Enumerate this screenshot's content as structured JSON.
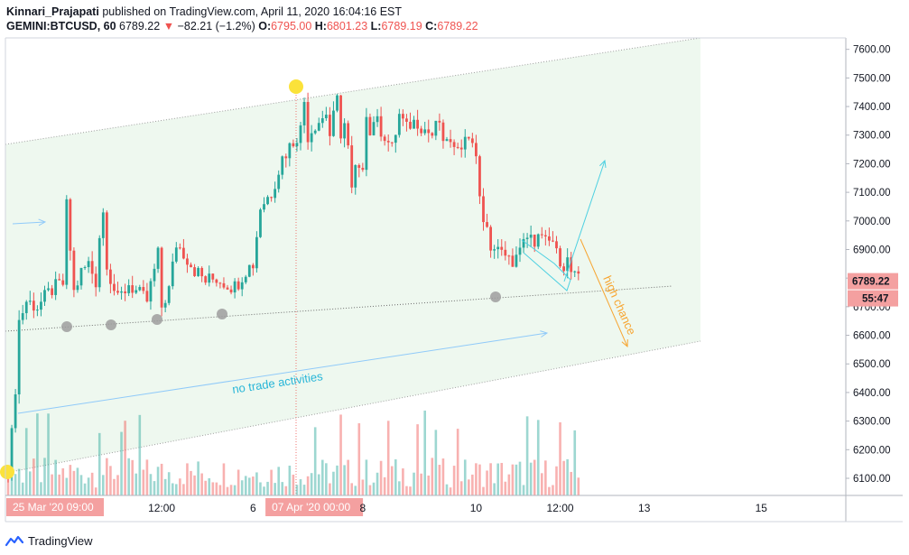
{
  "header": {
    "author": "Kinnari_Prajapati",
    "published": "published on TradingView.com, April 11, 2020 16:04:16 EST",
    "symbol": "GEMINI:BTCUSD, 60",
    "last": "6789.22",
    "arrow": "▼",
    "change": "−82.21 (−1.2%)",
    "o_label": "O:",
    "o_value": "6795.00",
    "h_label": "H:",
    "h_value": "6801.23",
    "l_label": "L:",
    "l_value": "6789.19",
    "c_label": "C:",
    "c_value": "6789.22"
  },
  "footer": {
    "brand": "TradingView"
  },
  "colors": {
    "up": "#26a69a",
    "down": "#ef5350",
    "channel_fill": "#e8f5e9",
    "accent_blue": "#4dd0e1",
    "accent_orange": "#f7a531",
    "highlight": "#fbe23a"
  },
  "chart_data": {
    "type": "candlestick",
    "y_axis": {
      "min": 6040,
      "max": 7640,
      "ticks": [
        "7600.00",
        "7500.00",
        "7400.00",
        "7300.00",
        "7200.00",
        "7100.00",
        "7000.00",
        "6900.00",
        "6800.00",
        "6700.00",
        "6600.00",
        "6500.00",
        "6400.00",
        "6300.00",
        "6200.00",
        "6100.00"
      ],
      "tick_values": [
        7600,
        7500,
        7400,
        7300,
        7200,
        7100,
        7000,
        6900,
        6800,
        6700,
        6600,
        6500,
        6400,
        6300,
        6200,
        6100
      ]
    },
    "x_axis": {
      "labels": [
        {
          "text": "25 Mar '20   09:00",
          "highlight": true,
          "bar": 0
        },
        {
          "text": "12:00",
          "bar": 42
        },
        {
          "text": "6",
          "bar": 67
        },
        {
          "text": "07 Apr '20   00:00",
          "highlight": true,
          "bar": 82
        },
        {
          "text": "8",
          "bar": 97
        },
        {
          "text": "10",
          "bar": 128
        },
        {
          "text": "12:00",
          "bar": 151
        },
        {
          "text": "13",
          "bar": 174
        },
        {
          "text": "15",
          "bar": 206
        }
      ]
    },
    "last_price": "6789.22",
    "countdown": "55:47",
    "annotations": [
      "no trade activities",
      "high chance"
    ],
    "series_anchors": [
      [
        0,
        6150
      ],
      [
        1,
        6250
      ],
      [
        2,
        6420
      ],
      [
        3,
        6650
      ],
      [
        5,
        6720
      ],
      [
        8,
        6700
      ],
      [
        12,
        6760
      ],
      [
        15,
        6780
      ],
      [
        16,
        7050
      ],
      [
        17,
        6900
      ],
      [
        18,
        6750
      ],
      [
        20,
        6820
      ],
      [
        22,
        6850
      ],
      [
        24,
        6790
      ],
      [
        25,
        6950
      ],
      [
        26,
        7030
      ],
      [
        27,
        6860
      ],
      [
        28,
        6800
      ],
      [
        30,
        6720
      ],
      [
        33,
        6780
      ],
      [
        36,
        6740
      ],
      [
        38,
        6720
      ],
      [
        41,
        6880
      ],
      [
        42,
        6700
      ],
      [
        44,
        6760
      ],
      [
        46,
        6920
      ],
      [
        48,
        6890
      ],
      [
        51,
        6830
      ],
      [
        54,
        6790
      ],
      [
        57,
        6800
      ],
      [
        60,
        6780
      ],
      [
        62,
        6770
      ],
      [
        65,
        6830
      ],
      [
        67,
        6850
      ],
      [
        69,
        7050
      ],
      [
        72,
        7100
      ],
      [
        75,
        7220
      ],
      [
        78,
        7280
      ],
      [
        80,
        7320
      ],
      [
        81,
        7420
      ],
      [
        82,
        7300
      ],
      [
        84,
        7340
      ],
      [
        86,
        7360
      ],
      [
        87,
        7380
      ],
      [
        88,
        7300
      ],
      [
        90,
        7420
      ],
      [
        91,
        7310
      ],
      [
        92,
        7340
      ],
      [
        93,
        7250
      ],
      [
        94,
        7100
      ],
      [
        95,
        7180
      ],
      [
        96,
        7160
      ],
      [
        97,
        7200
      ],
      [
        98,
        7390
      ],
      [
        99,
        7300
      ],
      [
        100,
        7360
      ],
      [
        103,
        7300
      ],
      [
        105,
        7250
      ],
      [
        107,
        7370
      ],
      [
        109,
        7320
      ],
      [
        110,
        7340
      ],
      [
        112,
        7350
      ],
      [
        114,
        7320
      ],
      [
        116,
        7300
      ],
      [
        118,
        7350
      ],
      [
        119,
        7250
      ],
      [
        120,
        7300
      ],
      [
        121,
        7260
      ],
      [
        122,
        7230
      ],
      [
        123,
        7280
      ],
      [
        125,
        7280
      ],
      [
        126,
        7300
      ],
      [
        127,
        7290
      ],
      [
        128,
        7200
      ],
      [
        129,
        7100
      ],
      [
        130,
        7000
      ],
      [
        131,
        6960
      ],
      [
        132,
        6880
      ],
      [
        133,
        6930
      ],
      [
        135,
        6880
      ],
      [
        136,
        6900
      ],
      [
        138,
        6820
      ],
      [
        139,
        6900
      ],
      [
        141,
        6920
      ],
      [
        143,
        6930
      ],
      [
        145,
        6940
      ],
      [
        147,
        6920
      ],
      [
        149,
        6930
      ],
      [
        150,
        6880
      ],
      [
        151,
        6870
      ],
      [
        152,
        6850
      ],
      [
        153,
        6860
      ],
      [
        154,
        6820
      ],
      [
        155,
        6800
      ],
      [
        156,
        6789
      ]
    ],
    "volume_max": 100
  }
}
